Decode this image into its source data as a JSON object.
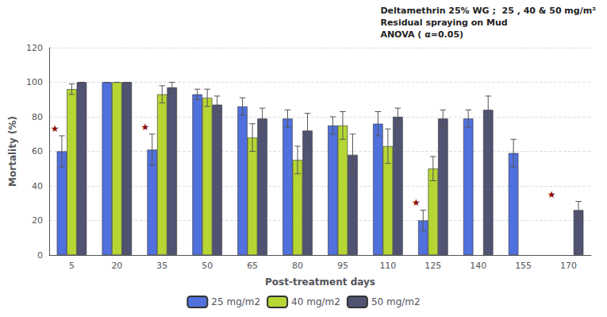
{
  "chart_data": {
    "type": "bar",
    "categories": [
      "5",
      "20",
      "35",
      "50",
      "65",
      "80",
      "95",
      "110",
      "125",
      "140",
      "155",
      "170"
    ],
    "series": [
      {
        "name": "25 mg/m2",
        "values": [
          60,
          100,
          61,
          93,
          86,
          79,
          75,
          76,
          20,
          79,
          59,
          null
        ],
        "errors": [
          9,
          0,
          9,
          3,
          5,
          5,
          5,
          7,
          6,
          5,
          8,
          null
        ]
      },
      {
        "name": "40 mg/m2",
        "values": [
          96,
          100,
          93,
          91,
          68,
          55,
          75,
          63,
          50,
          null,
          null,
          null
        ],
        "errors": [
          3,
          0,
          5,
          5,
          8,
          8,
          8,
          10,
          7,
          null,
          null,
          null
        ]
      },
      {
        "name": "50 mg/m2",
        "values": [
          100,
          100,
          97,
          87,
          79,
          72,
          58,
          80,
          79,
          84,
          null,
          26
        ],
        "errors": [
          0,
          0,
          3,
          5,
          6,
          10,
          12,
          5,
          5,
          8,
          null,
          5
        ]
      }
    ],
    "xlabel": "Post-treatment days",
    "ylabel": "Mortality (%)",
    "ylim": [
      0,
      120
    ],
    "yticks": [
      0,
      20,
      40,
      60,
      80,
      100,
      120
    ],
    "grid": true,
    "legend": "bottom",
    "annotations": [
      {
        "text": "Deltamethrin 25% WG ;  25 , 40 & 50 mg/m²\nResidual spraying on Mud\nANOVA ( α=0.05)"
      },
      {
        "text": "★",
        "series": "25 mg/m2",
        "category": "5",
        "color": "#8b0000"
      },
      {
        "text": "★",
        "series": "25 mg/m2",
        "category": "35",
        "color": "#8b0000"
      },
      {
        "text": "★",
        "series": "25 mg/m2",
        "category": "125",
        "color": "#8b0000"
      },
      {
        "text": "★",
        "series": "50 mg/m2",
        "category": "170",
        "color": "#8b0000"
      }
    ]
  }
}
